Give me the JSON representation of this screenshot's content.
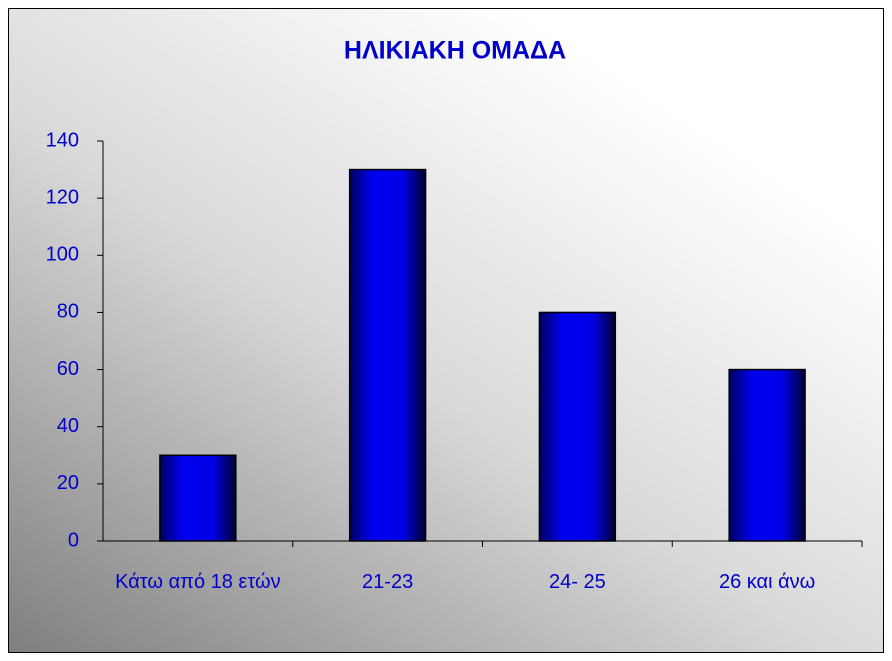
{
  "chart_data": {
    "type": "bar",
    "title": "ΗΛΙΚΙΑΚΗ ΟΜΑΔΑ",
    "categories": [
      "Κάτω από 18 ετών",
      "21-23",
      "24- 25",
      "26 και άνω"
    ],
    "values": [
      30,
      130,
      80,
      60
    ],
    "color": "#0000ff",
    "ylim": [
      0,
      140
    ],
    "yticks": [
      0,
      20,
      40,
      60,
      80,
      100,
      120,
      140
    ],
    "grid": false
  }
}
